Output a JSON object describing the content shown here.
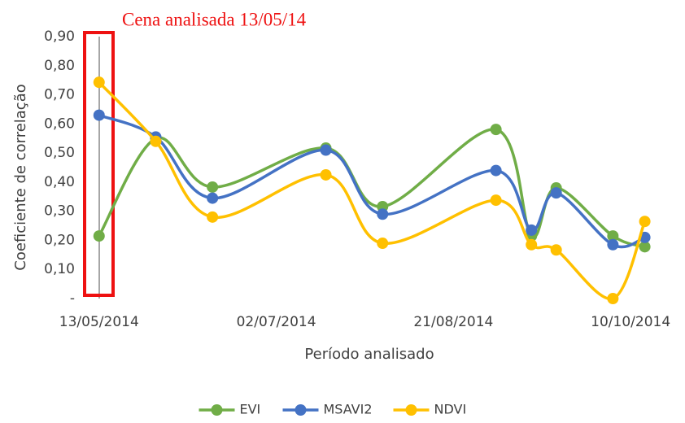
{
  "chart_data": {
    "type": "line",
    "annotation": "Cena analisada 13/05/14",
    "xlabel": "Período analisado",
    "ylabel": "Coeficiente de correlação",
    "x": [
      "13/05/2014",
      "29/05/2014",
      "14/06/2014",
      "16/07/2014",
      "01/08/2014",
      "02/09/2014",
      "12/09/2014",
      "19/09/2014",
      "05/10/2014",
      "14/10/2014"
    ],
    "series": [
      {
        "name": "EVI",
        "color": "#70ad47",
        "values": [
          0.215,
          0.55,
          0.383,
          0.517,
          0.316,
          0.581,
          0.215,
          0.38,
          0.215,
          0.178
        ]
      },
      {
        "name": "MSAVI2",
        "color": "#4472c4",
        "values": [
          0.63,
          0.555,
          0.345,
          0.51,
          0.29,
          0.44,
          0.235,
          0.363,
          0.185,
          0.21
        ]
      },
      {
        "name": "NDVI",
        "color": "#ffc000",
        "values": [
          0.743,
          0.54,
          0.28,
          0.425,
          0.19,
          0.338,
          0.185,
          0.167,
          0.0,
          0.265
        ]
      }
    ],
    "xlim": [
      "08/05/2014",
      "18/10/2014"
    ],
    "xticks": [
      "13/05/2014",
      "02/07/2014",
      "21/08/2014",
      "10/10/2014"
    ],
    "ylim": [
      0,
      0.9
    ],
    "yticks": [
      {
        "value": 0,
        "label": "-"
      },
      {
        "value": 0.1,
        "label": "0,10"
      },
      {
        "value": 0.2,
        "label": "0,20"
      },
      {
        "value": 0.3,
        "label": "0,30"
      },
      {
        "value": 0.4,
        "label": "0,40"
      },
      {
        "value": 0.5,
        "label": "0,50"
      },
      {
        "value": 0.6,
        "label": "0,60"
      },
      {
        "value": 0.7,
        "label": "0,70"
      },
      {
        "value": 0.8,
        "label": "0,80"
      },
      {
        "value": 0.9,
        "label": "0,90"
      }
    ],
    "legend": "bottom",
    "grid": false
  }
}
